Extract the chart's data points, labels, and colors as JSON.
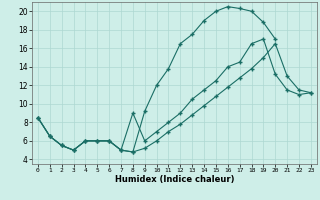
{
  "xlabel": "Humidex (Indice chaleur)",
  "bg_color": "#ceeee8",
  "grid_color": "#aed8d2",
  "line_color": "#1a6e65",
  "xlim": [
    -0.5,
    23.5
  ],
  "ylim": [
    3.5,
    21.0
  ],
  "xticks": [
    0,
    1,
    2,
    3,
    4,
    5,
    6,
    7,
    8,
    9,
    10,
    11,
    12,
    13,
    14,
    15,
    16,
    17,
    18,
    19,
    20,
    21,
    22,
    23
  ],
  "yticks": [
    4,
    6,
    8,
    10,
    12,
    14,
    16,
    18,
    20
  ],
  "curve1_x": [
    0,
    1,
    2,
    3,
    4,
    5,
    6,
    7,
    8,
    9,
    10,
    11,
    12,
    13,
    14,
    15,
    16,
    17,
    18,
    19,
    20
  ],
  "curve1_y": [
    8.5,
    6.5,
    5.5,
    5.0,
    6.0,
    6.0,
    6.0,
    5.0,
    4.8,
    9.2,
    12.0,
    13.8,
    16.5,
    17.5,
    19.0,
    20.0,
    20.5,
    20.3,
    20.0,
    18.8,
    17.0
  ],
  "curve2_x": [
    0,
    1,
    2,
    3,
    4,
    5,
    6,
    7,
    8,
    9,
    10,
    11,
    12,
    13,
    14,
    15,
    16,
    17,
    18,
    19,
    20,
    21,
    22,
    23
  ],
  "curve2_y": [
    8.5,
    6.5,
    5.5,
    5.0,
    6.0,
    6.0,
    6.0,
    5.0,
    9.0,
    6.0,
    7.0,
    8.0,
    9.0,
    10.5,
    11.5,
    12.5,
    14.0,
    14.5,
    16.5,
    17.0,
    13.2,
    11.5,
    11.0,
    11.2
  ],
  "curve3_x": [
    0,
    1,
    2,
    3,
    4,
    5,
    6,
    7,
    8,
    9,
    10,
    11,
    12,
    13,
    14,
    15,
    16,
    17,
    18,
    19,
    20,
    21,
    22,
    23
  ],
  "curve3_y": [
    8.5,
    6.5,
    5.5,
    5.0,
    6.0,
    6.0,
    6.0,
    5.0,
    4.8,
    5.2,
    6.0,
    7.0,
    7.8,
    8.8,
    9.8,
    10.8,
    11.8,
    12.8,
    13.8,
    15.0,
    16.5,
    13.0,
    11.5,
    11.2
  ]
}
